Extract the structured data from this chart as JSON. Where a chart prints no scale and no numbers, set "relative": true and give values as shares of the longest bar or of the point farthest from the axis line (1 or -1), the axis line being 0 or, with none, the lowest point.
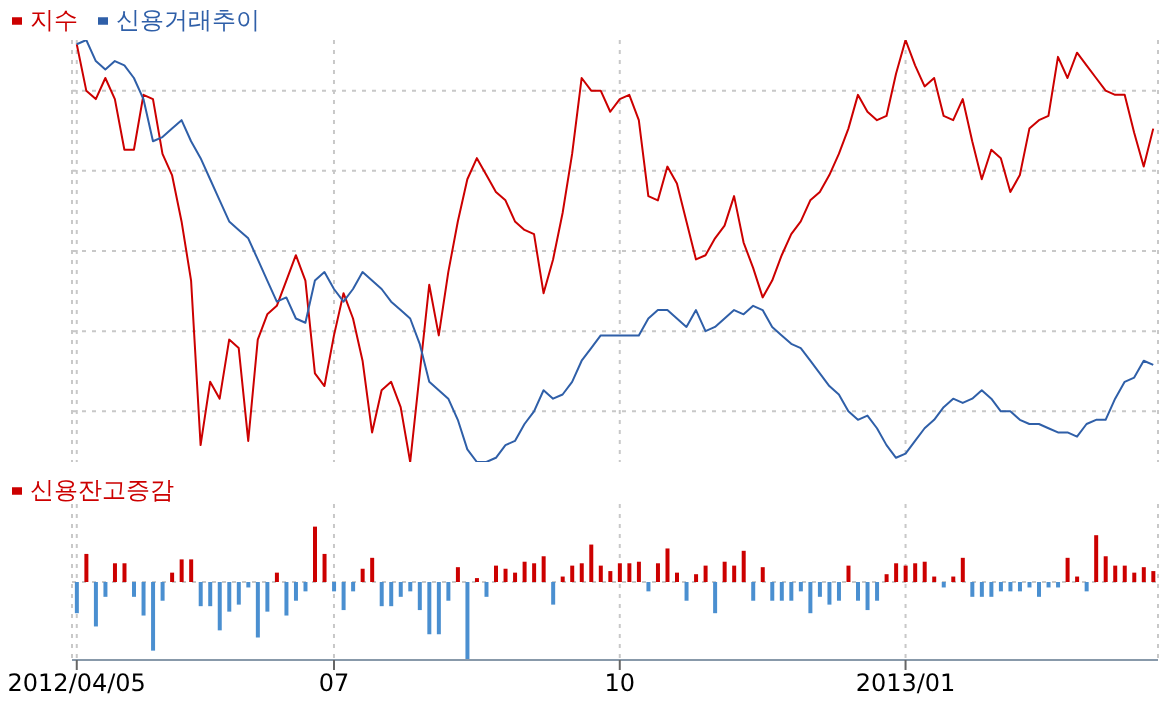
{
  "chart_data": [
    {
      "type": "line",
      "relative": true,
      "grid": true,
      "legend": "top left",
      "tick_labels": false,
      "categories": [
        "2012/04/05",
        null,
        null,
        null,
        null,
        null,
        null,
        null,
        null,
        null,
        null,
        null,
        null,
        null,
        null,
        null,
        null,
        null,
        null,
        null,
        null,
        null,
        null,
        null,
        null,
        null,
        null,
        "07",
        null,
        null,
        null,
        null,
        null,
        null,
        null,
        null,
        null,
        null,
        null,
        null,
        null,
        null,
        null,
        null,
        null,
        null,
        null,
        null,
        null,
        null,
        null,
        null,
        null,
        null,
        null,
        null,
        null,
        "10",
        null,
        null,
        null,
        null,
        null,
        null,
        null,
        null,
        null,
        null,
        null,
        null,
        null,
        null,
        null,
        null,
        null,
        null,
        null,
        null,
        null,
        null,
        null,
        null,
        null,
        null,
        null,
        null,
        null,
        "2013/01",
        null,
        null,
        null,
        null,
        null,
        null,
        null,
        null,
        null,
        null,
        null,
        null,
        null,
        null,
        null,
        null,
        null,
        null,
        null,
        null,
        null,
        null,
        null,
        null,
        null,
        null
      ],
      "series": [
        {
          "name": "지수",
          "color": "#cc0000",
          "values": [
            0.99,
            0.88,
            0.86,
            0.91,
            0.86,
            0.74,
            0.74,
            0.87,
            0.86,
            0.73,
            0.68,
            0.57,
            0.43,
            0.04,
            0.19,
            0.15,
            0.29,
            0.27,
            0.05,
            0.29,
            0.35,
            0.37,
            0.43,
            0.49,
            0.43,
            0.21,
            0.18,
            0.3,
            0.4,
            0.34,
            0.24,
            0.07,
            0.17,
            0.19,
            0.13,
            0,
            0.21,
            0.42,
            0.3,
            0.45,
            0.57,
            0.67,
            0.72,
            0.68,
            0.64,
            0.62,
            0.57,
            0.55,
            0.54,
            0.4,
            0.48,
            0.59,
            0.73,
            0.91,
            0.88,
            0.88,
            0.83,
            0.86,
            0.87,
            0.81,
            0.63,
            0.62,
            0.7,
            0.66,
            0.57,
            0.48,
            0.49,
            0.53,
            0.56,
            0.63,
            0.52,
            0.46,
            0.39,
            0.43,
            0.49,
            0.54,
            0.57,
            0.62,
            0.64,
            0.68,
            0.73,
            0.79,
            0.87,
            0.83,
            0.81,
            0.82,
            0.92,
            1,
            0.94,
            0.89,
            0.91,
            0.82,
            0.81,
            0.86,
            0.76,
            0.67,
            0.74,
            0.72,
            0.64,
            0.68,
            0.79,
            0.81,
            0.82,
            0.96,
            0.91,
            0.97,
            0.94,
            0.91,
            0.88,
            0.87,
            0.87,
            0.78,
            0.7,
            0.79
          ]
        },
        {
          "name": "신용거래추이",
          "color": "#2f5fa8",
          "values": [
            0.99,
            1,
            0.95,
            0.93,
            0.95,
            0.94,
            0.91,
            0.86,
            0.76,
            0.77,
            0.79,
            0.81,
            0.76,
            0.72,
            0.67,
            0.62,
            0.57,
            0.55,
            0.53,
            0.48,
            0.43,
            0.38,
            0.39,
            0.34,
            0.33,
            0.43,
            0.45,
            0.41,
            0.38,
            0.41,
            0.45,
            0.43,
            0.41,
            0.38,
            0.36,
            0.34,
            0.28,
            0.19,
            0.17,
            0.15,
            0.1,
            0.03,
            0,
            0,
            0.01,
            0.04,
            0.05,
            0.09,
            0.12,
            0.17,
            0.15,
            0.16,
            0.19,
            0.24,
            0.27,
            0.3,
            0.3,
            0.3,
            0.3,
            0.3,
            0.34,
            0.36,
            0.36,
            0.34,
            0.32,
            0.36,
            0.31,
            0.32,
            0.34,
            0.36,
            0.35,
            0.37,
            0.36,
            0.32,
            0.3,
            0.28,
            0.27,
            0.24,
            0.21,
            0.18,
            0.16,
            0.12,
            0.1,
            0.11,
            0.08,
            0.04,
            0.01,
            0.02,
            0.05,
            0.08,
            0.1,
            0.13,
            0.15,
            0.14,
            0.15,
            0.17,
            0.15,
            0.12,
            0.12,
            0.1,
            0.09,
            0.09,
            0.08,
            0.07,
            0.07,
            0.06,
            0.09,
            0.1,
            0.1,
            0.15,
            0.19,
            0.2,
            0.24,
            0.23
          ]
        }
      ]
    },
    {
      "type": "bar",
      "relative": true,
      "grid": true,
      "legend": "top left",
      "categories": [
        "2012/04/05",
        null,
        null,
        null,
        null,
        null,
        null,
        null,
        null,
        null,
        null,
        null,
        null,
        null,
        null,
        null,
        null,
        null,
        null,
        null,
        null,
        null,
        null,
        null,
        null,
        null,
        null,
        "07",
        null,
        null,
        null,
        null,
        null,
        null,
        null,
        null,
        null,
        null,
        null,
        null,
        null,
        null,
        null,
        null,
        null,
        null,
        null,
        null,
        null,
        null,
        null,
        null,
        null,
        null,
        null,
        null,
        null,
        "10",
        null,
        null,
        null,
        null,
        null,
        null,
        null,
        null,
        null,
        null,
        null,
        null,
        null,
        null,
        null,
        null,
        null,
        null,
        null,
        null,
        null,
        null,
        null,
        null,
        null,
        null,
        null,
        null,
        null,
        "2013/01",
        null,
        null,
        null,
        null,
        null,
        null,
        null,
        null,
        null,
        null,
        null,
        null,
        null,
        null,
        null,
        null,
        null,
        null,
        null,
        null,
        null,
        null,
        null,
        null,
        null,
        null
      ],
      "series": [
        {
          "name": "신용잔고증감",
          "color": "#cc0000",
          "values": [
            -0.4,
            0.36,
            -0.57,
            -0.19,
            0.24,
            0.24,
            -0.19,
            -0.43,
            -0.88,
            -0.24,
            0.12,
            0.29,
            0.29,
            -0.31,
            -0.31,
            -0.62,
            -0.38,
            -0.29,
            -0.07,
            -0.71,
            -0.38,
            0.12,
            -0.43,
            -0.24,
            -0.12,
            0.71,
            0.36,
            -0.12,
            -0.36,
            -0.12,
            0.17,
            0.31,
            -0.31,
            -0.31,
            -0.19,
            -0.12,
            -0.36,
            -0.67,
            -0.67,
            -0.24,
            0.19,
            -1,
            0.05,
            -0.19,
            0.21,
            0.17,
            0.12,
            0.26,
            0.24,
            0.33,
            -0.29,
            0.07,
            0.21,
            0.24,
            0.48,
            0.21,
            0.14,
            0.24,
            0.24,
            0.26,
            -0.12,
            0.24,
            0.43,
            0.12,
            -0.24,
            0.1,
            0.21,
            -0.4,
            0.26,
            0.21,
            0.4,
            -0.24,
            0.19,
            -0.24,
            -0.24,
            -0.24,
            -0.12,
            -0.4,
            -0.19,
            -0.29,
            -0.24,
            0.21,
            -0.24,
            -0.36,
            -0.24,
            0.1,
            0.24,
            0.21,
            0.24,
            0.26,
            0.07,
            -0.07,
            0.07,
            0.31,
            -0.19,
            -0.19,
            -0.19,
            -0.12,
            -0.12,
            -0.12,
            -0.07,
            -0.19,
            -0.07,
            -0.07,
            0.31,
            0.07,
            -0.12,
            0.6,
            0.33,
            0.21,
            0.21,
            0.12,
            0.19,
            0.14
          ],
          "colors": [
            "#4a8fd0",
            "#cc0000",
            "#4a8fd0",
            "#4a8fd0",
            "#cc0000",
            "#cc0000",
            "#4a8fd0",
            "#4a8fd0",
            "#4a8fd0",
            "#4a8fd0",
            "#cc0000",
            "#cc0000",
            "#cc0000",
            "#4a8fd0",
            "#4a8fd0",
            "#4a8fd0",
            "#4a8fd0",
            "#4a8fd0",
            "#4a8fd0",
            "#4a8fd0",
            "#4a8fd0",
            "#cc0000",
            "#4a8fd0",
            "#4a8fd0",
            "#4a8fd0",
            "#cc0000",
            "#cc0000",
            "#4a8fd0",
            "#4a8fd0",
            "#4a8fd0",
            "#cc0000",
            "#cc0000",
            "#4a8fd0",
            "#4a8fd0",
            "#4a8fd0",
            "#4a8fd0",
            "#4a8fd0",
            "#4a8fd0",
            "#4a8fd0",
            "#4a8fd0",
            "#cc0000",
            "#4a8fd0",
            "#cc0000",
            "#4a8fd0",
            "#cc0000",
            "#cc0000",
            "#cc0000",
            "#cc0000",
            "#cc0000",
            "#cc0000",
            "#4a8fd0",
            "#cc0000",
            "#cc0000",
            "#cc0000",
            "#cc0000",
            "#cc0000",
            "#cc0000",
            "#cc0000",
            "#cc0000",
            "#cc0000",
            "#4a8fd0",
            "#cc0000",
            "#cc0000",
            "#cc0000",
            "#4a8fd0",
            "#cc0000",
            "#cc0000",
            "#4a8fd0",
            "#cc0000",
            "#cc0000",
            "#cc0000",
            "#4a8fd0",
            "#cc0000",
            "#4a8fd0",
            "#4a8fd0",
            "#4a8fd0",
            "#4a8fd0",
            "#4a8fd0",
            "#4a8fd0",
            "#4a8fd0",
            "#4a8fd0",
            "#cc0000",
            "#4a8fd0",
            "#4a8fd0",
            "#4a8fd0",
            "#cc0000",
            "#cc0000",
            "#cc0000",
            "#cc0000",
            "#cc0000",
            "#cc0000",
            "#4a8fd0",
            "#cc0000",
            "#cc0000",
            "#4a8fd0",
            "#4a8fd0",
            "#4a8fd0",
            "#4a8fd0",
            "#4a8fd0",
            "#4a8fd0",
            "#4a8fd0",
            "#4a8fd0",
            "#4a8fd0",
            "#4a8fd0",
            "#cc0000",
            "#cc0000",
            "#4a8fd0",
            "#cc0000",
            "#cc0000",
            "#cc0000",
            "#cc0000",
            "#cc0000",
            "#cc0000",
            "#cc0000"
          ]
        }
      ]
    }
  ]
}
